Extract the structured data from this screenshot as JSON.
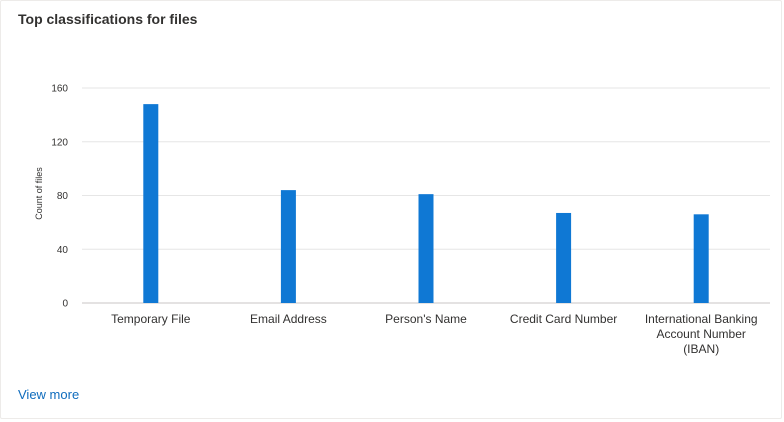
{
  "card": {
    "title": "Top classifications for files",
    "view_more_label": "View more"
  },
  "colors": {
    "bar": "#0f78d4",
    "grid": "#e6e6e6",
    "baseline": "#c8c6c4",
    "link": "#0f6cbd"
  },
  "chart_data": {
    "type": "bar",
    "categories": [
      [
        "Temporary File"
      ],
      [
        "Email Address"
      ],
      [
        "Person's Name"
      ],
      [
        "Credit Card Number"
      ],
      [
        "International Banking",
        "Account Number",
        "(IBAN)"
      ]
    ],
    "values": [
      148,
      84,
      81,
      67,
      66
    ],
    "ylabel": "Count of files",
    "xlabel": "",
    "ylim": [
      0,
      160
    ],
    "yticks": [
      0,
      40,
      80,
      120,
      160
    ],
    "grid": true,
    "legend": "none"
  }
}
